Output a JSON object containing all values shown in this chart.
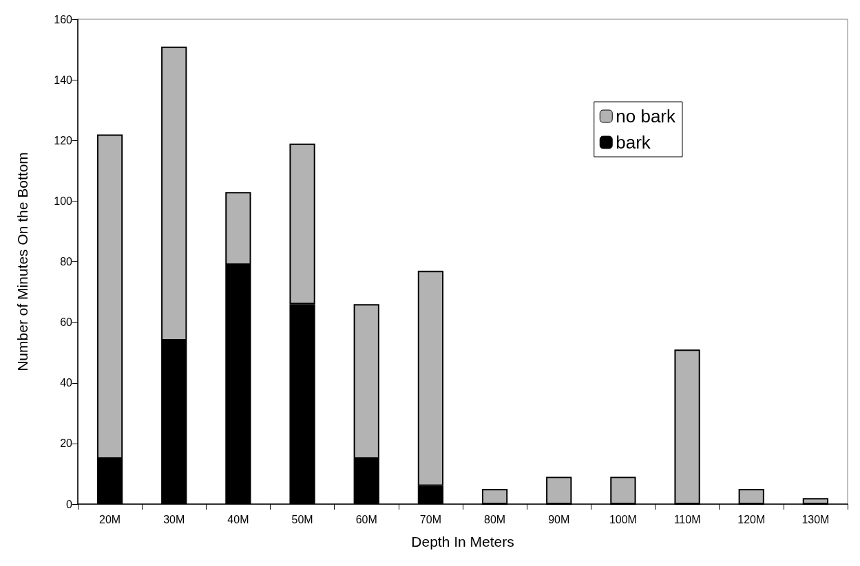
{
  "chart_data": {
    "type": "bar",
    "stacked": true,
    "xlabel": "Depth In Meters",
    "ylabel": "Number of Minutes On the Bottom",
    "categories": [
      "20M",
      "30M",
      "40M",
      "50M",
      "60M",
      "70M",
      "80M",
      "90M",
      "100M",
      "110M",
      "120M",
      "130M"
    ],
    "series": [
      {
        "name": "bark",
        "color": "#000000",
        "values": [
          15,
          54,
          79,
          66,
          15,
          6,
          0,
          0,
          0,
          0,
          0,
          0
        ]
      },
      {
        "name": "no bark",
        "color": "#b3b3b3",
        "values": [
          107,
          97,
          24,
          53,
          51,
          71,
          5,
          9,
          9,
          51,
          5,
          2
        ]
      }
    ],
    "ylim": [
      0,
      160
    ],
    "yticks": [
      0,
      20,
      40,
      60,
      80,
      100,
      120,
      140,
      160
    ],
    "grid": false,
    "legend": "top right"
  }
}
